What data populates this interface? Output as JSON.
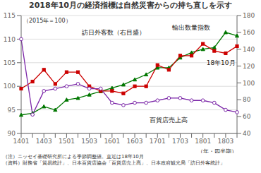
{
  "chart_data": {
    "type": "line",
    "title": "2018年10月の経済指標は自然災害からの持ち直しを示す",
    "subtitle": "（2015年＝100）",
    "x_label": "（年・四半期）",
    "notes": [
      "（注）ニッセイ基礎研究所による季節調整値。直近は18年10月",
      "（資料）財務省「貿易統計」、日本百貨店協会「百貨店売上高」、日本政府観光局「訪日外客統計」"
    ],
    "annotations": [
      "18年10月"
    ],
    "categories": [
      "1401",
      null,
      "1403",
      null,
      "1501",
      null,
      "1503",
      null,
      "1601",
      null,
      "1603",
      null,
      "1701",
      null,
      "1703",
      null,
      "1801",
      null,
      "1803",
      null
    ],
    "series": [
      {
        "name": "訪日外客数（右目盛）",
        "color": "#007700",
        "marker": "triangle",
        "axis": "y2",
        "values": [
          62,
          64,
          72,
          68,
          80,
          82,
          86,
          90,
          94,
          98,
          104,
          110,
          118,
          118,
          130,
          136,
          140,
          142,
          160,
          156
        ]
      },
      {
        "name": "輸出数量指数",
        "color": "#cc0000",
        "marker": "square",
        "values": [
          99.5,
          101.0,
          103.5,
          100.5,
          103.0,
          103.0,
          100.0,
          99.0,
          99.0,
          98.5,
          100.0,
          100.0,
          104.5,
          103.5,
          106.5,
          106.5,
          109.0,
          107.5,
          107.0,
          108.5
        ]
      },
      {
        "name": "百貨店売上高",
        "color": "#7B26A8",
        "marker": "circle-open",
        "values": [
          110.0,
          94.0,
          99.0,
          99.5,
          100.0,
          100.5,
          99.5,
          99.5,
          96.5,
          96.0,
          96.5,
          96.5,
          97.0,
          97.5,
          97.5,
          97.0,
          97.0,
          96.5,
          95.0,
          94.5
        ]
      }
    ],
    "ylim": [
      90,
      115
    ],
    "yticks": [
      90,
      95,
      100,
      105,
      110,
      115
    ],
    "y2lim": [
      40,
      180
    ],
    "y2ticks": [
      40,
      60,
      80,
      100,
      120,
      140,
      160,
      180
    ],
    "grid": true
  }
}
